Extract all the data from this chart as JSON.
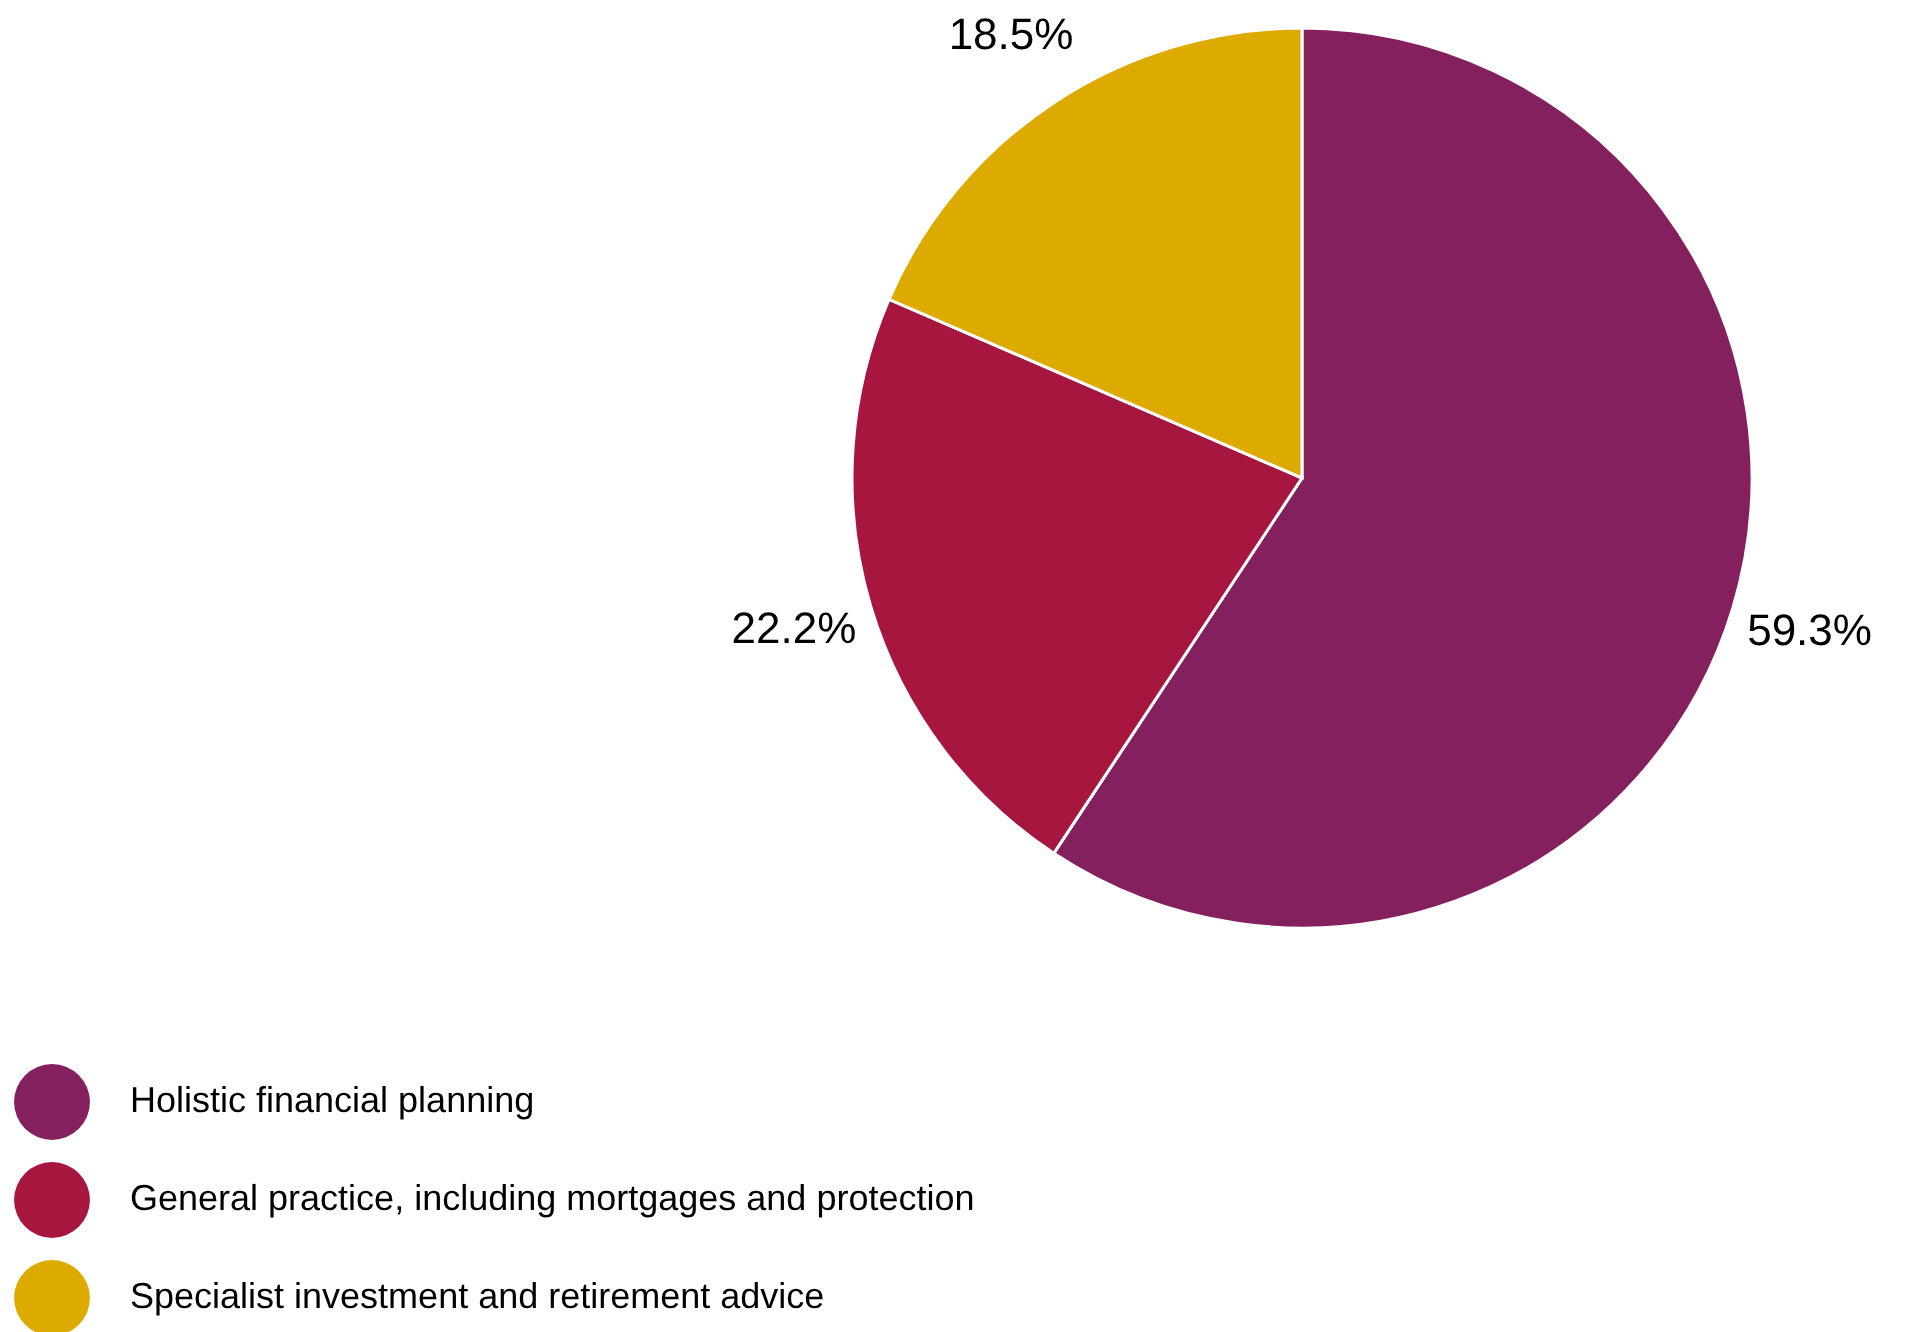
{
  "chart_data": {
    "type": "pie",
    "categories": [
      "Holistic financial planning",
      "General practice, including mortgages and protection",
      "Specialist investment and retirement advice"
    ],
    "values": [
      59.3,
      22.2,
      18.5
    ],
    "colors": [
      "#84205e",
      "#a6163f",
      "#ddaa00"
    ],
    "value_labels": [
      "59.3%",
      "22.2%",
      "18.5%"
    ],
    "legend": "bottom left"
  }
}
